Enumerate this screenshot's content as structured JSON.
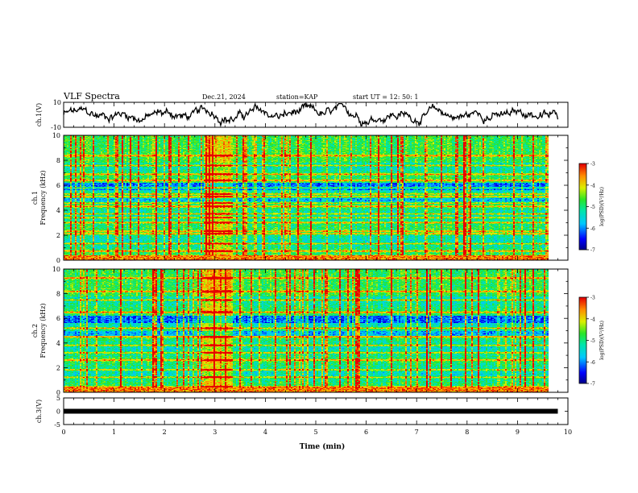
{
  "header": {
    "title": "VLF Spectra",
    "date": "Dec.21, 2024",
    "station": "station=KAP",
    "start": "start  UT =   12: 50: 1"
  },
  "chart_data": [
    {
      "type": "line",
      "title": "",
      "ylabel": "ch.1(V)",
      "xlim": [
        0,
        10
      ],
      "ylim": [
        -10,
        10
      ],
      "yticks": [
        "10",
        "-10"
      ],
      "x_end": 9.8,
      "note": "noisy waveform, values approximately between -9 and 9 V"
    },
    {
      "type": "heatmap",
      "ylabel_line1": "ch.1",
      "ylabel_line2": "Frequency (kHz)",
      "xlim": [
        0,
        10
      ],
      "ylim": [
        0,
        10
      ],
      "yticks": [
        "0",
        "2",
        "4",
        "6",
        "8",
        "10"
      ],
      "x_end": 9.8,
      "burst_interval": [
        2.85,
        3.4
      ],
      "bands_khz": [
        0.3,
        0.7,
        1.3,
        2.1,
        2.3,
        3.0,
        3.4,
        3.7,
        4.3,
        4.6,
        5.1,
        5.3,
        5.8,
        6.4,
        6.9,
        7.6,
        8.4
      ],
      "colorbar": {
        "label": "log(PSD)(V²/Hz)",
        "range": [
          -7,
          -3
        ],
        "ticks": [
          "-3",
          "-4",
          "-5",
          "-6",
          "-7"
        ]
      }
    },
    {
      "type": "heatmap",
      "ylabel_line1": "ch.2",
      "ylabel_line2": "Frequency (kHz)",
      "xlim": [
        0,
        10
      ],
      "ylim": [
        0,
        10
      ],
      "yticks": [
        "0",
        "2",
        "4",
        "6",
        "8",
        "10"
      ],
      "x_end": 9.8,
      "burst_interval": [
        2.85,
        3.4
      ],
      "bands_khz": [
        0.4,
        1.2,
        1.8,
        2.6,
        3.2,
        3.8,
        4.5,
        5.2,
        6.5,
        7.5,
        8.2,
        9.3
      ],
      "colorbar": {
        "label": "log(PSD)(V²/Hz)",
        "range": [
          -7,
          -3
        ],
        "ticks": [
          "-3",
          "-4",
          "-5",
          "-6",
          "-7"
        ]
      }
    },
    {
      "type": "line",
      "ylabel": "ch.3(V)",
      "xlim": [
        0,
        10
      ],
      "ylim": [
        -5,
        5
      ],
      "yticks": [
        "5",
        "0",
        "-5"
      ],
      "x_end": 9.8,
      "note": "constant thick trace near 0 V"
    }
  ],
  "xaxis": {
    "label": "Time (min)",
    "ticks": [
      "0",
      "1",
      "2",
      "3",
      "4",
      "5",
      "6",
      "7",
      "8",
      "9",
      "10"
    ]
  },
  "colors": {
    "line": "#000000",
    "frame": "#000000"
  }
}
